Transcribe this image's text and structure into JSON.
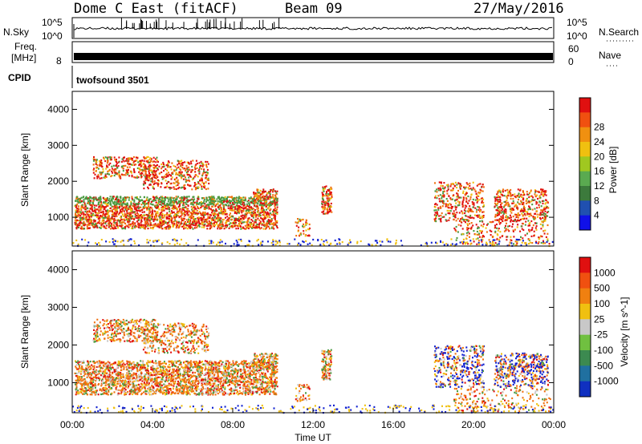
{
  "header": {
    "station": "Dome C East (fitACF)",
    "beam": "Beam 09",
    "date": "27/May/2016"
  },
  "status_panels": {
    "nsky_label": "N.Sky",
    "nsky_ticks": [
      "10^5",
      "10^0"
    ],
    "nsearch_label": "N.Search",
    "nsearch_ticks": [
      "10^5",
      "10^0"
    ],
    "freq_label_1": "Freq.",
    "freq_label_2": "[MHz]",
    "freq_ticks": [
      "8"
    ],
    "nave_label": "Nave",
    "nave_ticks": [
      "60",
      "0"
    ],
    "cpid_label": "CPID",
    "cpid_value": "twofsound 3501"
  },
  "chart_data": [
    {
      "type": "heatmap",
      "name": "power",
      "ylabel": "Slant Range [km]",
      "ylim": [
        200,
        4500
      ],
      "y_ticks": [
        "1000",
        "2000",
        "3000",
        "4000"
      ],
      "colorbar_label": "Power [dB]",
      "colorbar_ticks": [
        "4",
        "8",
        "12",
        "16",
        "20",
        "24",
        "28"
      ],
      "colorbar_colors": [
        "#1010e8",
        "#2050b0",
        "#3c7a3c",
        "#5aaa50",
        "#a0c820",
        "#f0c010",
        "#f09010",
        "#f05010",
        "#e01010"
      ]
    },
    {
      "type": "heatmap",
      "name": "velocity",
      "ylabel": "Slant Range [km]",
      "ylim": [
        200,
        4500
      ],
      "y_ticks": [
        "1000",
        "2000",
        "3000",
        "4000"
      ],
      "colorbar_label": "Velocity [m s^-1]",
      "colorbar_ticks": [
        "1000",
        "500",
        "100",
        "25",
        "-25",
        "-100",
        "-500",
        "-1000"
      ],
      "colorbar_colors": [
        "#1030c0",
        "#2070a0",
        "#3c8a50",
        "#70c040",
        "#c8c8c8",
        "#f0c010",
        "#f08010",
        "#f05010",
        "#e01010"
      ]
    }
  ],
  "x_axis": {
    "ticks": [
      "00:00",
      "04:00",
      "08:00",
      "12:00",
      "16:00",
      "20:00",
      "00:00"
    ],
    "label": "Time UT"
  },
  "colors": {
    "red": "#e01010",
    "orange": "#f07010",
    "yellow": "#f0c010",
    "green": "#4a9a40",
    "blue": "#1020d0",
    "grey": "#c8c8c8"
  }
}
